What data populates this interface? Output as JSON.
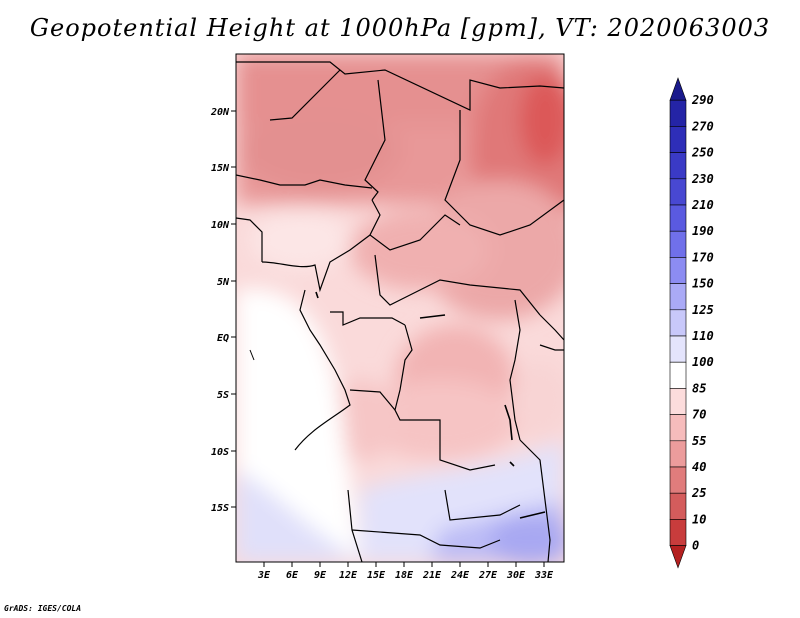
{
  "title": "Geopotential Height at 1000hPa [gpm], VT: 2020063003",
  "footer": "GrADS: IGES/COLA",
  "map": {
    "variable": "Geopotential Height",
    "level": "1000hPa",
    "units": "gpm",
    "valid_time": "2020063003",
    "lat_labels": [
      "20N",
      "15N",
      "10N",
      "5N",
      "EQ",
      "5S",
      "10S",
      "15S"
    ],
    "lon_labels": [
      "3E",
      "6E",
      "9E",
      "12E",
      "15E",
      "18E",
      "21E",
      "24E",
      "27E",
      "30E",
      "33E"
    ]
  },
  "colorbar": {
    "labels": [
      "290",
      "270",
      "250",
      "230",
      "210",
      "190",
      "170",
      "150",
      "125",
      "110",
      "100",
      "85",
      "70",
      "55",
      "40",
      "25",
      "10",
      "0"
    ],
    "colors": [
      "#1a1a8c",
      "#2424a6",
      "#2e2eb8",
      "#3a3ac6",
      "#4848d2",
      "#5a5ae0",
      "#7070ea",
      "#8c8cf2",
      "#aaaaf6",
      "#c8c8fa",
      "#e4e4fc",
      "#ffffff",
      "#fcdcdc",
      "#f6bcbc",
      "#ec9c9c",
      "#e07c7c",
      "#d45c5c",
      "#c83c3c",
      "#b42020"
    ]
  }
}
